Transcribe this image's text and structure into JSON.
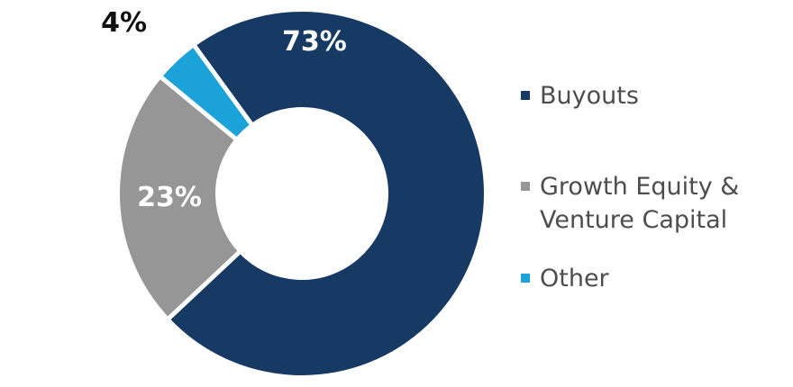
{
  "chart_data": {
    "type": "pie",
    "title": "",
    "slices": [
      {
        "label": "Buyouts",
        "value": 73,
        "display": "73%",
        "color": "#173a64",
        "label_color": "#ffffff"
      },
      {
        "label": "Growth Equity & Venture Capital",
        "value": 23,
        "display": "23%",
        "color": "#969696",
        "label_color": "#ffffff"
      },
      {
        "label": "Other",
        "value": 4,
        "display": "4%",
        "color": "#1ba2d9",
        "label_color": "#111111"
      }
    ],
    "legend_placement": "right"
  }
}
